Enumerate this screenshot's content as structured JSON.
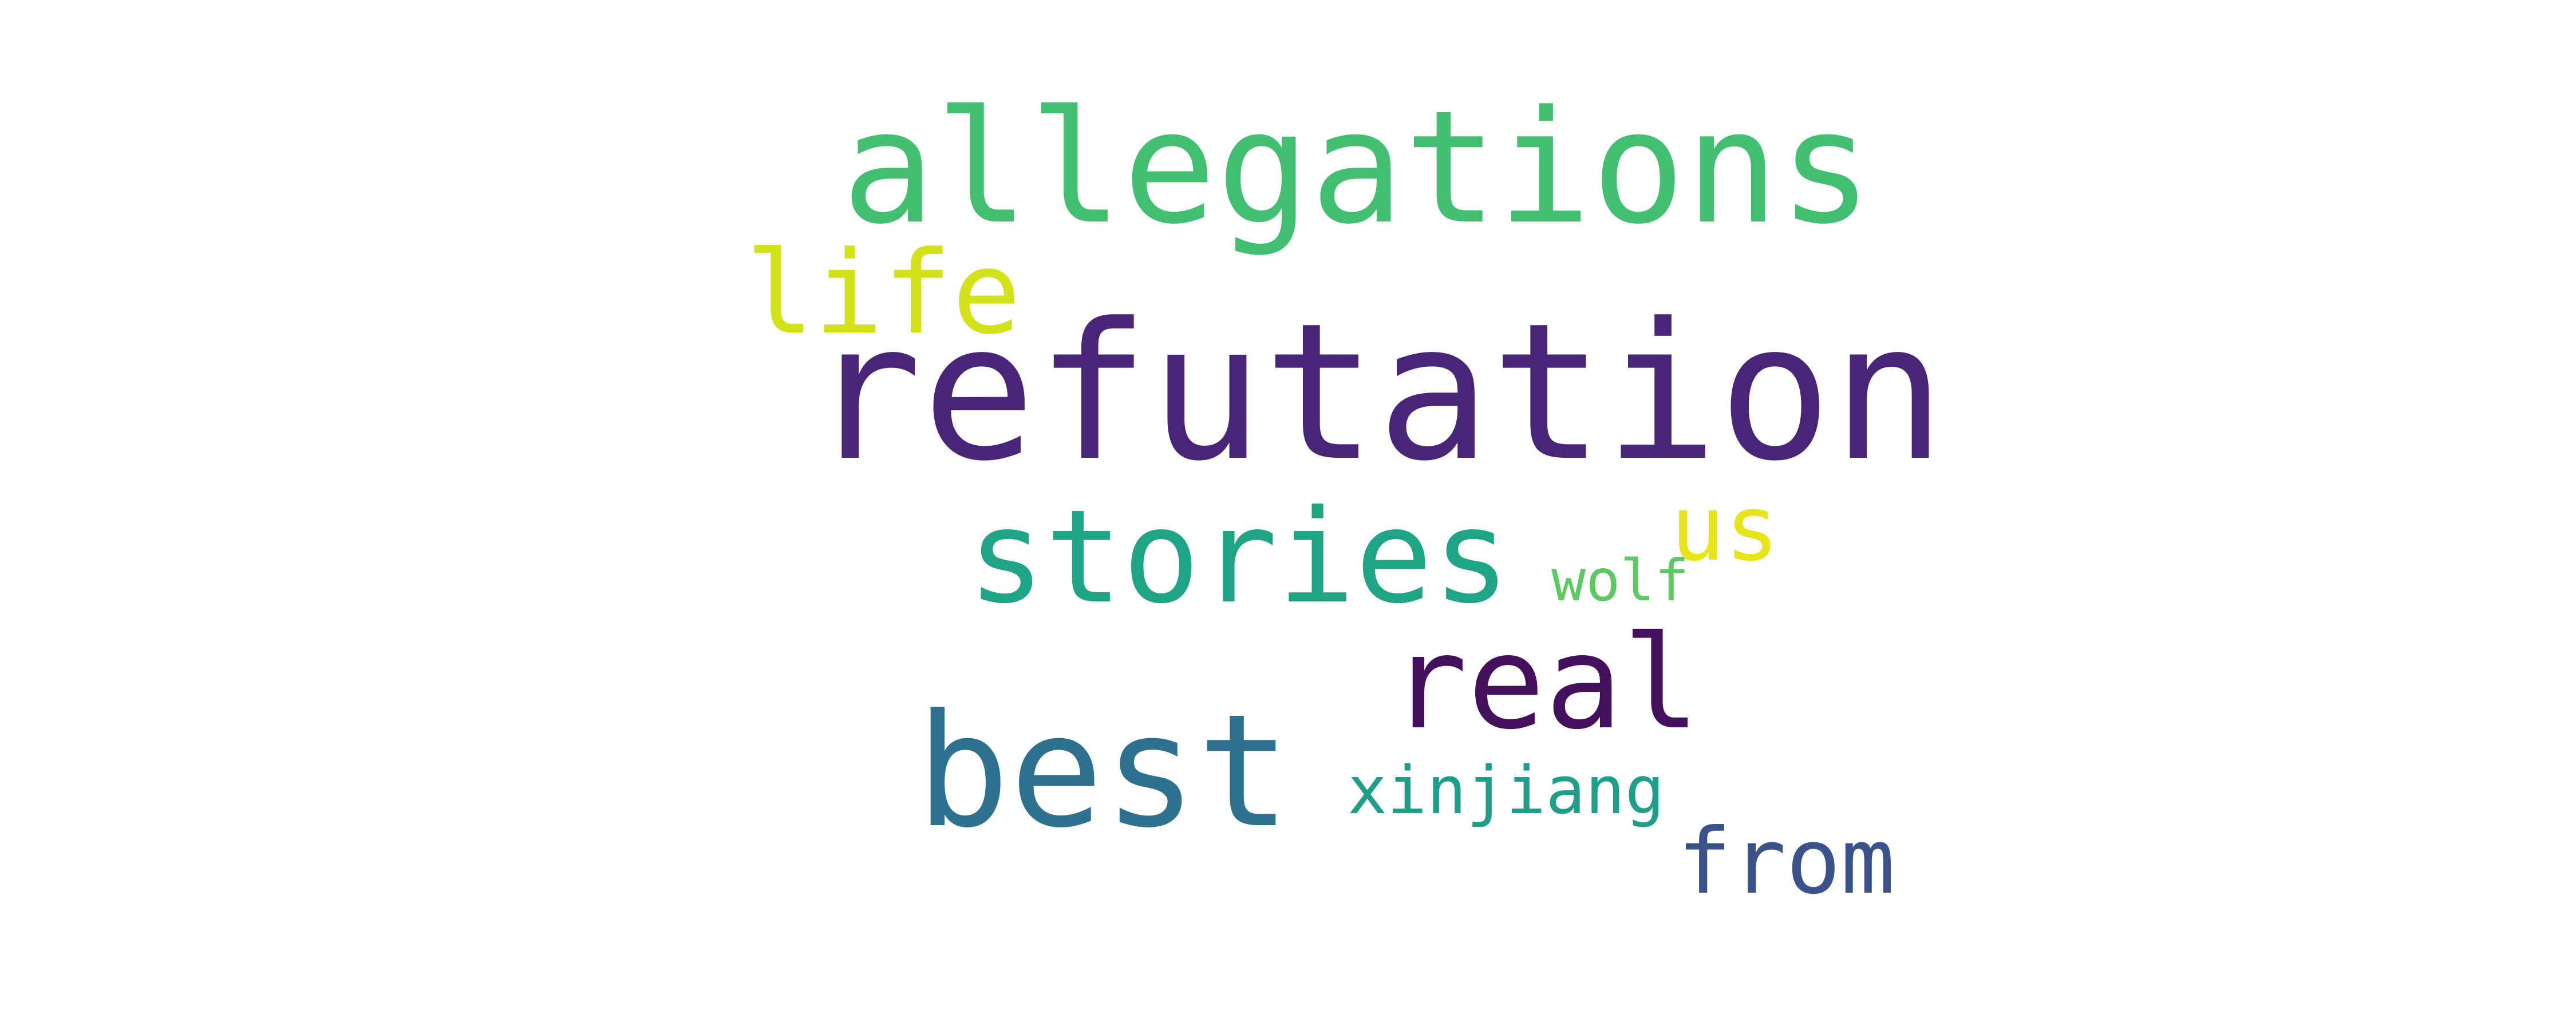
{
  "words": [
    {
      "id": "refutation",
      "text": "refutation",
      "color": "#482576"
    },
    {
      "id": "allegations",
      "text": "allegations",
      "color": "#43bf71"
    },
    {
      "id": "best",
      "text": "best",
      "color": "#2c728e"
    },
    {
      "id": "stories",
      "text": "stories",
      "color": "#20a486"
    },
    {
      "id": "real",
      "text": "real",
      "color": "#440f5c"
    },
    {
      "id": "life",
      "text": "life",
      "color": "#d2e21b"
    },
    {
      "id": "us",
      "text": "us",
      "color": "#e7e419"
    },
    {
      "id": "from",
      "text": "from",
      "color": "#3b528b"
    },
    {
      "id": "xinjiang",
      "text": "xinjiang",
      "color": "#1f9e89"
    },
    {
      "id": "wolf",
      "text": "wolf",
      "color": "#5ec962"
    }
  ]
}
